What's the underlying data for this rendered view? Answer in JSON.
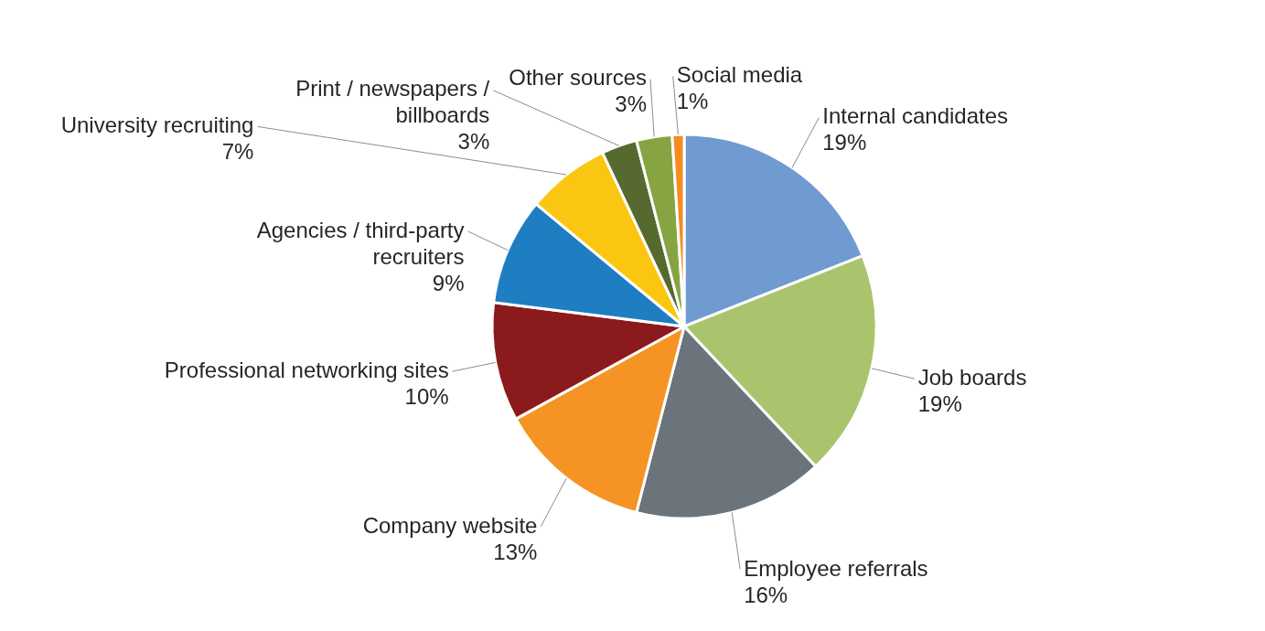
{
  "chart_data": {
    "type": "pie",
    "categories": [
      "Internal candidates",
      "Job boards",
      "Employee referrals",
      "Company website",
      "Professional networking sites",
      "Agencies / third-party recruiters",
      "University recruiting",
      "Print / newspapers / billboards",
      "Other sources",
      "Social media"
    ],
    "values": [
      19,
      19,
      16,
      13,
      10,
      9,
      7,
      3,
      3,
      1
    ],
    "value_labels": [
      "19%",
      "19%",
      "16%",
      "13%",
      "10%",
      "9%",
      "7%",
      "3%",
      "3%",
      "1%"
    ],
    "colors": [
      "#6f9bd1",
      "#aac46d",
      "#6b747b",
      "#f59424",
      "#8b1a1c",
      "#1f7dc1",
      "#fbc611",
      "#566a30",
      "#87a443",
      "#f58b20"
    ]
  }
}
